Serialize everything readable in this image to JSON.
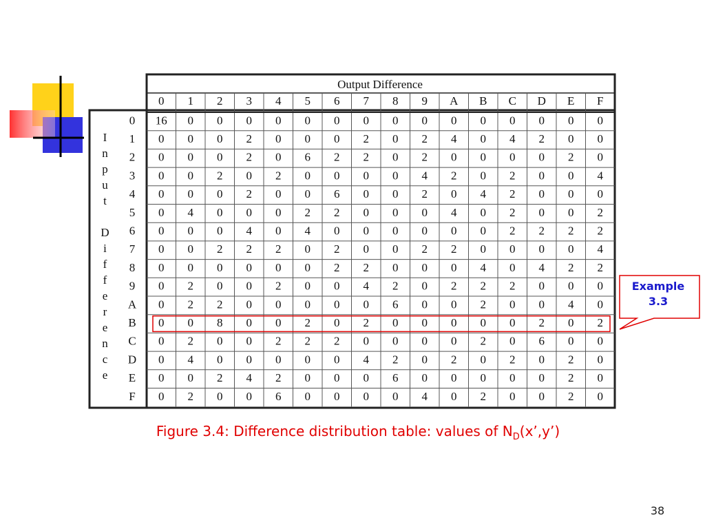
{
  "table": {
    "title": "Output Difference",
    "row_label": "Input Difference",
    "columns": [
      "0",
      "1",
      "2",
      "3",
      "4",
      "5",
      "6",
      "7",
      "8",
      "9",
      "A",
      "B",
      "C",
      "D",
      "E",
      "F"
    ],
    "rows": [
      {
        "header": "0",
        "cells": [
          16,
          0,
          0,
          0,
          0,
          0,
          0,
          0,
          0,
          0,
          0,
          0,
          0,
          0,
          0,
          0
        ]
      },
      {
        "header": "1",
        "cells": [
          0,
          0,
          0,
          2,
          0,
          0,
          0,
          2,
          0,
          2,
          4,
          0,
          4,
          2,
          0,
          0
        ]
      },
      {
        "header": "2",
        "cells": [
          0,
          0,
          0,
          2,
          0,
          6,
          2,
          2,
          0,
          2,
          0,
          0,
          0,
          0,
          2,
          0
        ]
      },
      {
        "header": "3",
        "cells": [
          0,
          0,
          2,
          0,
          2,
          0,
          0,
          0,
          0,
          4,
          2,
          0,
          2,
          0,
          0,
          4
        ]
      },
      {
        "header": "4",
        "cells": [
          0,
          0,
          0,
          2,
          0,
          0,
          6,
          0,
          0,
          2,
          0,
          4,
          2,
          0,
          0,
          0
        ]
      },
      {
        "header": "5",
        "cells": [
          0,
          4,
          0,
          0,
          0,
          2,
          2,
          0,
          0,
          0,
          4,
          0,
          2,
          0,
          0,
          2
        ]
      },
      {
        "header": "6",
        "cells": [
          0,
          0,
          0,
          4,
          0,
          4,
          0,
          0,
          0,
          0,
          0,
          0,
          2,
          2,
          2,
          2
        ]
      },
      {
        "header": "7",
        "cells": [
          0,
          0,
          2,
          2,
          2,
          0,
          2,
          0,
          0,
          2,
          2,
          0,
          0,
          0,
          0,
          4
        ]
      },
      {
        "header": "8",
        "cells": [
          0,
          0,
          0,
          0,
          0,
          0,
          2,
          2,
          0,
          0,
          0,
          4,
          0,
          4,
          2,
          2
        ]
      },
      {
        "header": "9",
        "cells": [
          0,
          2,
          0,
          0,
          2,
          0,
          0,
          4,
          2,
          0,
          2,
          2,
          2,
          0,
          0,
          0
        ]
      },
      {
        "header": "A",
        "cells": [
          0,
          2,
          2,
          0,
          0,
          0,
          0,
          0,
          6,
          0,
          0,
          2,
          0,
          0,
          4,
          0
        ]
      },
      {
        "header": "B",
        "cells": [
          0,
          0,
          8,
          0,
          0,
          2,
          0,
          2,
          0,
          0,
          0,
          0,
          0,
          2,
          0,
          2
        ]
      },
      {
        "header": "C",
        "cells": [
          0,
          2,
          0,
          0,
          2,
          2,
          2,
          0,
          0,
          0,
          0,
          2,
          0,
          6,
          0,
          0
        ]
      },
      {
        "header": "D",
        "cells": [
          0,
          4,
          0,
          0,
          0,
          0,
          0,
          4,
          2,
          0,
          2,
          0,
          2,
          0,
          2,
          0
        ]
      },
      {
        "header": "E",
        "cells": [
          0,
          0,
          2,
          4,
          2,
          0,
          0,
          0,
          6,
          0,
          0,
          0,
          0,
          0,
          2,
          0
        ]
      },
      {
        "header": "F",
        "cells": [
          0,
          2,
          0,
          0,
          6,
          0,
          0,
          0,
          0,
          4,
          0,
          2,
          0,
          0,
          2,
          0
        ]
      }
    ]
  },
  "caption": {
    "text": "Figure 3.4: Difference distribution table: values of N",
    "subscript": "D",
    "suffix": "(x’,y’)"
  },
  "callout": {
    "line1": "Example",
    "line2": "3.3"
  },
  "page_number": "38"
}
